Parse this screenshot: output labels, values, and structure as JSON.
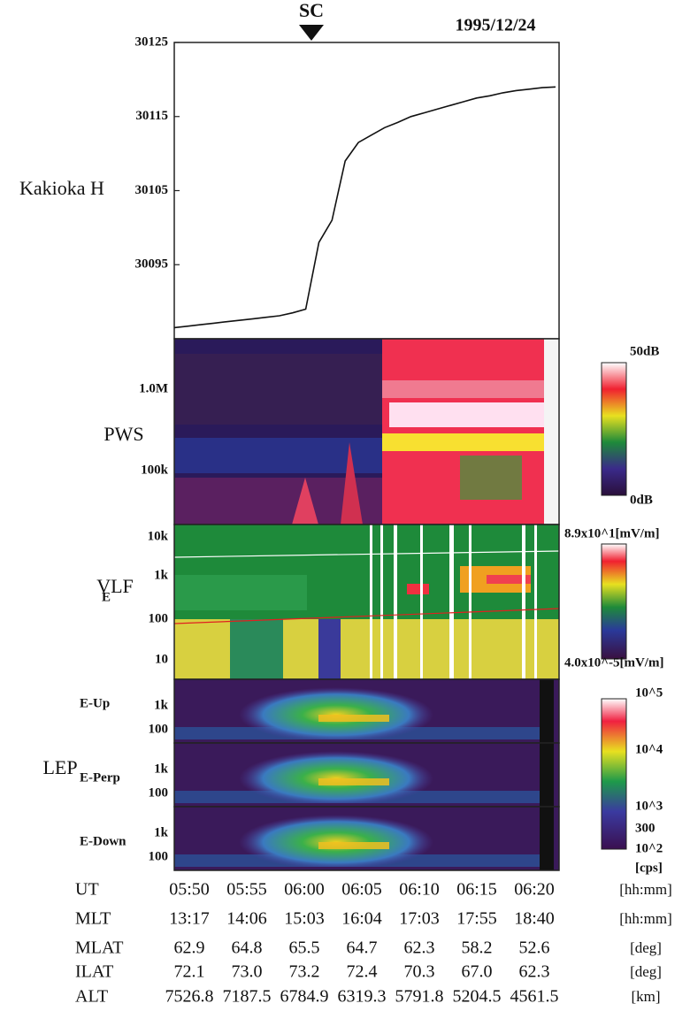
{
  "chart_data": {
    "type": "line",
    "ylabel": "Kakioka H",
    "annotation": "SC",
    "date": "1995/12/24",
    "x": [
      "05:50",
      "05:51",
      "05:52",
      "05:53",
      "05:54",
      "05:55",
      "05:56",
      "05:57",
      "05:58",
      "05:59",
      "06:00",
      "06:01",
      "06:02",
      "06:03",
      "06:04",
      "06:05",
      "06:06",
      "06:07",
      "06:08",
      "06:09",
      "06:10",
      "06:11",
      "06:12",
      "06:13",
      "06:14",
      "06:15",
      "06:16",
      "06:17",
      "06:18",
      "06:19"
    ],
    "values": [
      30086.5,
      30086.7,
      30086.9,
      30087.1,
      30087.3,
      30087.5,
      30087.7,
      30087.9,
      30088.1,
      30088.5,
      30089,
      30098,
      30101,
      30109,
      30111.5,
      30112.5,
      30113.5,
      30114.2,
      30115,
      30115.5,
      30116,
      30116.5,
      30117,
      30117.5,
      30117.8,
      30118.2,
      30118.5,
      30118.7,
      30118.9,
      30119
    ],
    "color": "#111111",
    "ylim": [
      30085,
      30125
    ],
    "yticks": [
      30095,
      30105,
      30115,
      30125
    ]
  },
  "panels": {
    "pws": {
      "label": "PWS",
      "ticks": [
        "1.0M",
        "100k"
      ],
      "colorbar": [
        "50dB",
        "0dB"
      ]
    },
    "vlf": {
      "label": "VLF",
      "component": "E",
      "ticks": [
        "10k",
        "1k",
        "100",
        "10"
      ],
      "colorbar": [
        "8.9x10^1[mV/m]",
        "4.0x10^-5[mV/m]"
      ]
    },
    "lep": {
      "label": "LEP",
      "subpanels": [
        {
          "name": "E-Up",
          "ticks": [
            "1k",
            "100"
          ]
        },
        {
          "name": "E-Perp",
          "ticks": [
            "1k",
            "100"
          ]
        },
        {
          "name": "E-Down",
          "ticks": [
            "1k",
            "100"
          ]
        }
      ],
      "colorbar": [
        "10^5",
        "10^4",
        "10^3",
        "300",
        "10^2",
        "[cps]"
      ]
    }
  },
  "orbit_table": {
    "rows": [
      {
        "name": "UT",
        "values": [
          "05:50",
          "05:55",
          "06:00",
          "06:05",
          "06:10",
          "06:15",
          "06:20"
        ],
        "unit": "[hh:mm]"
      },
      {
        "name": "MLT",
        "values": [
          "13:17",
          "14:06",
          "15:03",
          "16:04",
          "17:03",
          "17:55",
          "18:40"
        ],
        "unit": "[hh:mm]"
      },
      {
        "name": "MLAT",
        "values": [
          "62.9",
          "64.8",
          "65.5",
          "64.7",
          "62.3",
          "58.2",
          "52.6"
        ],
        "unit": "[deg]"
      },
      {
        "name": "ILAT",
        "values": [
          "72.1",
          "73.0",
          "73.2",
          "72.4",
          "70.3",
          "67.0",
          "62.3"
        ],
        "unit": "[deg]"
      },
      {
        "name": "ALT",
        "values": [
          "7526.8",
          "7187.5",
          "6784.9",
          "6319.3",
          "5791.8",
          "5204.5",
          "4561.5"
        ],
        "unit": "[km]"
      }
    ]
  }
}
